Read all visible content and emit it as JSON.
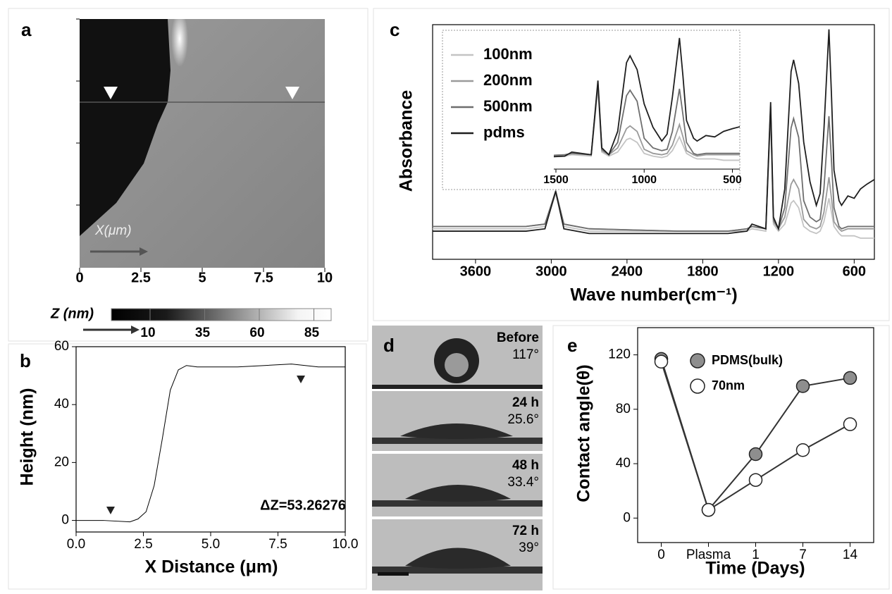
{
  "panel_a": {
    "label": "a",
    "xticks": [
      0,
      2.5,
      5,
      7.5,
      10
    ],
    "arrow_label": "X(μm)",
    "colorbar_label": "Z (nm)",
    "colorbar_ticks": [
      10,
      35,
      60,
      85
    ]
  },
  "panel_d": {
    "label": "d",
    "frames": [
      {
        "time": "Before",
        "angle": "117°"
      },
      {
        "time": "24 h",
        "angle": "25.6°"
      },
      {
        "time": "48 h",
        "angle": "33.4°"
      },
      {
        "time": "72 h",
        "angle": "39°"
      }
    ]
  },
  "chart_data": [
    {
      "type": "line",
      "panel": "b",
      "x_label": "X Distance (μm)",
      "y_label": "Height (nm)",
      "annotation": "ΔZ=53.26276",
      "x": [
        0,
        1,
        2,
        2.3,
        2.6,
        2.9,
        3.2,
        3.5,
        3.8,
        4.1,
        4.5,
        5,
        6,
        7,
        8,
        9,
        10
      ],
      "values": [
        0,
        0,
        -0.5,
        0.5,
        3,
        12,
        28,
        45,
        52,
        53.5,
        53,
        53,
        53,
        53.5,
        54,
        53,
        53
      ],
      "color": "#000000",
      "xlim": [
        0,
        10
      ],
      "ylim": [
        -4,
        60
      ],
      "xticks": [
        {
          "value": 0,
          "label": "0.0"
        },
        2.5,
        {
          "value": 5,
          "label": "5.0"
        },
        7.5,
        {
          "value": 10,
          "label": "10.0"
        }
      ],
      "yticks": [
        0,
        20,
        40,
        60
      ]
    },
    {
      "type": "line",
      "panel": "c",
      "x_label": "Wave number(cm⁻¹)",
      "y_label": "Absorbance",
      "x": [
        3940,
        3200,
        3050,
        2965,
        2900,
        2700,
        2000,
        1600,
        1450,
        1410,
        1300,
        1262,
        1240,
        1200,
        1150,
        1100,
        1080,
        1040,
        1000,
        950,
        900,
        870,
        840,
        800,
        780,
        760,
        720,
        700,
        650,
        600,
        550,
        500,
        440
      ],
      "series": [
        {
          "name": "100nm",
          "color": "#c4c4c4",
          "values": [
            0.13,
            0.13,
            0.14,
            0.28,
            0.14,
            0.12,
            0.12,
            0.12,
            0.12,
            0.13,
            0.12,
            0.62,
            0.15,
            0.12,
            0.15,
            0.24,
            0.25,
            0.22,
            0.14,
            0.12,
            0.11,
            0.12,
            0.16,
            0.26,
            0.2,
            0.14,
            0.11,
            0.1,
            0.1,
            0.1,
            0.09,
            0.09,
            0.09
          ]
        },
        {
          "name": "200nm",
          "color": "#9a9a9a",
          "values": [
            0.14,
            0.14,
            0.15,
            0.29,
            0.15,
            0.13,
            0.12,
            0.12,
            0.13,
            0.14,
            0.13,
            0.64,
            0.16,
            0.13,
            0.18,
            0.32,
            0.34,
            0.3,
            0.17,
            0.14,
            0.13,
            0.14,
            0.2,
            0.35,
            0.26,
            0.16,
            0.13,
            0.12,
            0.13,
            0.13,
            0.13,
            0.13,
            0.13
          ]
        },
        {
          "name": "500nm",
          "color": "#6e6e6e",
          "values": [
            0.14,
            0.14,
            0.15,
            0.29,
            0.15,
            0.13,
            0.12,
            0.12,
            0.13,
            0.14,
            0.13,
            0.65,
            0.17,
            0.13,
            0.22,
            0.56,
            0.6,
            0.52,
            0.25,
            0.18,
            0.16,
            0.17,
            0.3,
            0.61,
            0.42,
            0.22,
            0.14,
            0.13,
            0.14,
            0.14,
            0.14,
            0.14,
            0.14
          ]
        },
        {
          "name": "pdms",
          "color": "#1e1e1e",
          "values": [
            0.12,
            0.12,
            0.13,
            0.29,
            0.13,
            0.11,
            0.11,
            0.11,
            0.12,
            0.15,
            0.13,
            0.67,
            0.18,
            0.13,
            0.3,
            0.8,
            0.85,
            0.75,
            0.5,
            0.33,
            0.23,
            0.28,
            0.55,
            0.98,
            0.7,
            0.38,
            0.25,
            0.23,
            0.27,
            0.26,
            0.3,
            0.32,
            0.34
          ]
        }
      ],
      "xlim": [
        3940,
        440
      ],
      "ylim": [
        0,
        1
      ],
      "xticks": [
        3600,
        3000,
        2400,
        1800,
        1200,
        600
      ],
      "inset": {
        "xlim": [
          1512,
          458
        ],
        "xticks": [
          1500,
          1000,
          500
        ]
      }
    },
    {
      "type": "line",
      "panel": "e",
      "x_label": "Time (Days)",
      "y_label": "Contact angle(θ)",
      "categories": [
        "0",
        "Plasma",
        "1",
        "7",
        "14"
      ],
      "series": [
        {
          "name": "PDMS(bulk)",
          "color": "#8e8e8e",
          "values": [
            117,
            6,
            47,
            97,
            103
          ]
        },
        {
          "name": "70nm",
          "color": "#ffffff",
          "values": [
            115,
            6,
            28,
            50,
            69
          ]
        }
      ],
      "ylim": [
        -18,
        140
      ],
      "yticks": [
        0,
        40,
        80,
        120
      ],
      "markers": true
    }
  ]
}
